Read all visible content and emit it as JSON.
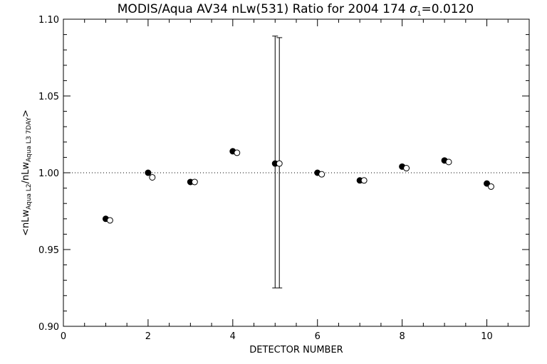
{
  "chart_data": {
    "type": "scatter",
    "title": {
      "main": "MODIS/Aqua AV34 nLw(531) Ratio for 2004 174 ",
      "sigma_symbol": "σ",
      "sigma_subscript": "1",
      "sigma_value": "=0.0120"
    },
    "xlabel": "DETECTOR NUMBER",
    "ylabel": {
      "prefix": "<nLw",
      "sub1": "Aqua L2",
      "mid": "/nLw",
      "sub2": "Aqua L3 7DAY",
      "suffix": ">"
    },
    "xlim": [
      0,
      11
    ],
    "ylim": [
      0.9,
      1.1
    ],
    "x_ticks": [
      0,
      2,
      4,
      6,
      8,
      10
    ],
    "x_tick_labels": [
      "0",
      "2",
      "4",
      "6",
      "8",
      "10"
    ],
    "y_ticks": [
      0.9,
      0.95,
      1.0,
      1.05,
      1.1
    ],
    "y_tick_labels": [
      "0.90",
      "0.95",
      "1.00",
      "1.05",
      "1.10"
    ],
    "reference_line": 1.0,
    "series": [
      {
        "marker": "filled-circle",
        "x": [
          1,
          2,
          3,
          4,
          5,
          6,
          7,
          8,
          9,
          10
        ],
        "y": [
          0.97,
          1.0,
          0.994,
          1.014,
          1.006,
          1.0,
          0.995,
          1.004,
          1.008,
          0.993
        ]
      },
      {
        "marker": "open-circle",
        "x": [
          1.1,
          2.1,
          3.1,
          4.1,
          5.1,
          6.1,
          7.1,
          8.1,
          9.1,
          10.1
        ],
        "y": [
          0.969,
          0.997,
          0.994,
          1.013,
          1.006,
          0.999,
          0.995,
          1.003,
          1.007,
          0.991
        ]
      }
    ],
    "error_bars": [
      {
        "x": 5.0,
        "low": 0.925,
        "high": 1.089
      },
      {
        "x": 5.1,
        "low": 0.925,
        "high": 1.088
      }
    ],
    "grid": false,
    "legend": "none"
  }
}
